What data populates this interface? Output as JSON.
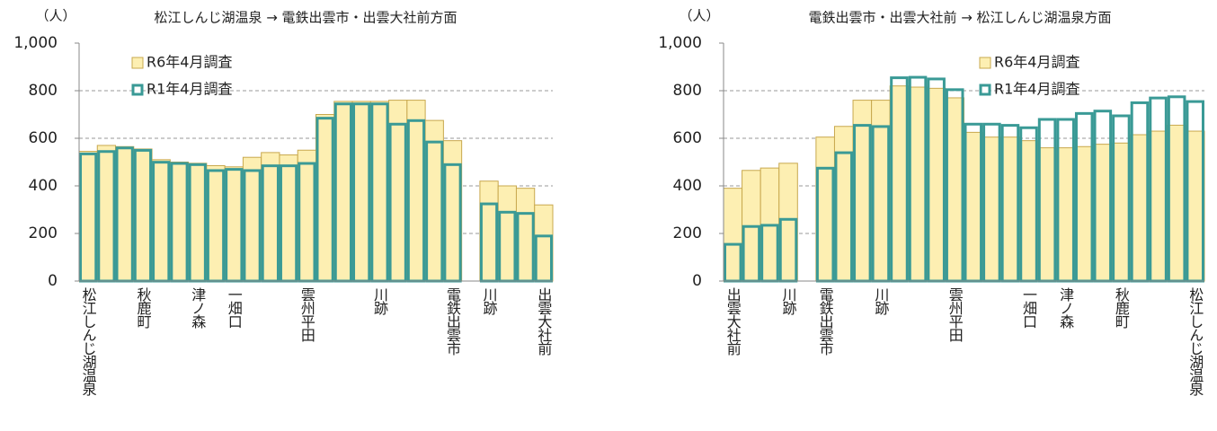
{
  "chart_data": [
    {
      "type": "bar",
      "title": "松江しんじ湖温泉 → 電鉄出雲市・出雲大社前方面",
      "y_label": "（人）",
      "categories": [
        "松江しんじ湖温泉",
        null,
        null,
        "秋鹿町",
        null,
        null,
        "津ノ森",
        null,
        "一畑口",
        null,
        null,
        null,
        "雲州平田",
        null,
        null,
        null,
        "川跡",
        null,
        null,
        null,
        "電鉄出雲市",
        null,
        "川跡",
        null,
        null,
        "出雲大社前"
      ],
      "series": [
        {
          "name": "R6年4月調査",
          "color": "#fdefb2",
          "values": [
            545,
            570,
            565,
            555,
            510,
            500,
            495,
            485,
            480,
            520,
            540,
            530,
            550,
            700,
            755,
            755,
            755,
            760,
            760,
            675,
            590,
            null,
            420,
            400,
            390,
            320
          ]
        },
        {
          "name": "R1年4月調査",
          "color": "#3a9a96",
          "values": [
            540,
            550,
            565,
            555,
            505,
            500,
            495,
            470,
            475,
            470,
            490,
            490,
            500,
            690,
            750,
            750,
            750,
            665,
            680,
            590,
            495,
            null,
            330,
            295,
            290,
            195
          ]
        }
      ],
      "ylim": [
        0,
        1000
      ],
      "yticks": [
        0,
        200,
        400,
        600,
        800,
        {
          "value": 1000,
          "label": "1,000"
        }
      ],
      "grid": true
    },
    {
      "type": "bar",
      "title": "電鉄出雲市・出雲大社前 → 松江しんじ湖温泉方面",
      "y_label": "（人）",
      "categories": [
        "出雲大社前",
        null,
        null,
        "川跡",
        null,
        "電鉄出雲市",
        null,
        null,
        "川跡",
        null,
        null,
        null,
        "雲州平田",
        null,
        null,
        null,
        "一畑口",
        null,
        "津ノ森",
        null,
        null,
        "秋鹿町",
        null,
        null,
        null,
        "松江しんじ湖温泉"
      ],
      "series": [
        {
          "name": "R6年4月調査",
          "color": "#fdefb2",
          "values": [
            390,
            465,
            475,
            495,
            null,
            605,
            650,
            760,
            760,
            820,
            815,
            810,
            770,
            625,
            605,
            605,
            590,
            560,
            560,
            565,
            575,
            580,
            615,
            630,
            655,
            630
          ]
        },
        {
          "name": "R1年4月調査",
          "color": "#3a9a96",
          "values": [
            160,
            235,
            240,
            265,
            null,
            480,
            545,
            660,
            655,
            860,
            862,
            855,
            810,
            665,
            665,
            660,
            650,
            685,
            685,
            710,
            720,
            700,
            755,
            775,
            780,
            760
          ]
        }
      ],
      "ylim": [
        0,
        1000
      ],
      "yticks": [
        0,
        200,
        400,
        600,
        800,
        {
          "value": 1000,
          "label": "1,000"
        }
      ],
      "grid": true
    }
  ]
}
